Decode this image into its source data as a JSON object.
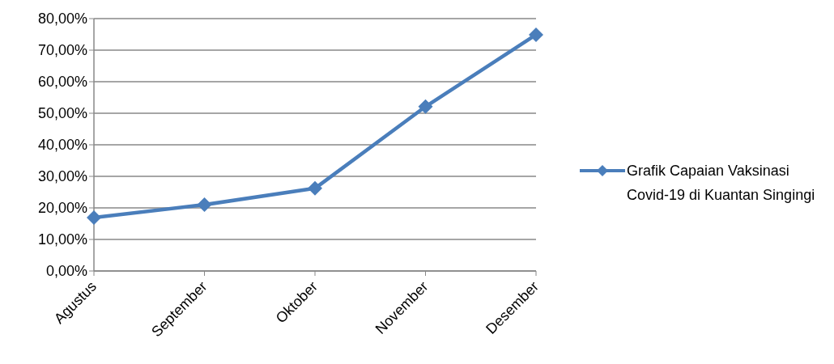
{
  "chart_data": {
    "type": "line",
    "categories": [
      "Agustus",
      "September",
      "Oktober",
      "November",
      "Desember"
    ],
    "series": [
      {
        "name": "Grafik Capaian Vaksinasi Covid-19 di Kuantan Singingi",
        "color": "#4a7ebb",
        "values": [
          16.9,
          21.0,
          26.2,
          52.1,
          74.9
        ]
      }
    ],
    "ylim": [
      0,
      80
    ],
    "yticks": [
      {
        "value": 0,
        "label": "0,00%"
      },
      {
        "value": 10,
        "label": "10,00%"
      },
      {
        "value": 20,
        "label": "20,00%"
      },
      {
        "value": 30,
        "label": "30,00%"
      },
      {
        "value": 40,
        "label": "40,00%"
      },
      {
        "value": 50,
        "label": "50,00%"
      },
      {
        "value": 60,
        "label": "60,00%"
      },
      {
        "value": 70,
        "label": "70,00%"
      },
      {
        "value": 80,
        "label": "80,00%"
      }
    ],
    "grid": "y",
    "legend": "right",
    "marker": "diamond",
    "line_style": "solid"
  }
}
